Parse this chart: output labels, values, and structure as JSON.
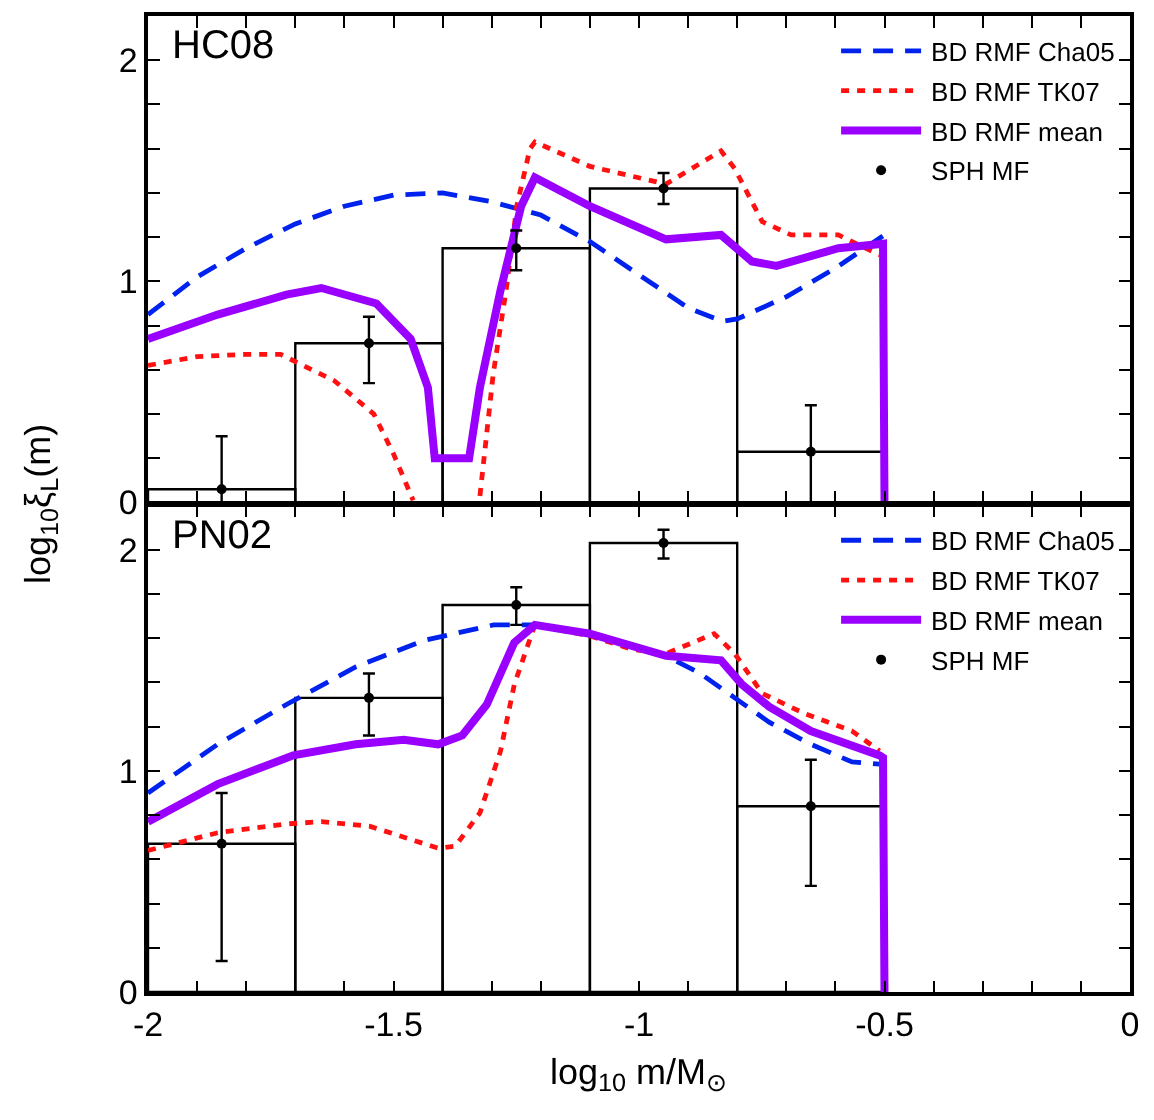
{
  "chart_data": [
    {
      "type": "line",
      "title": "HC08",
      "ylabel": "log$_{10}$ξ$_{L}$(m)",
      "xlim": [
        -2,
        0
      ],
      "ylim": [
        0,
        2.2
      ],
      "xticks": [
        -2,
        {
          "value": -1.9,
          "label": null
        },
        {
          "value": -1.8,
          "label": null
        },
        {
          "value": -1.7,
          "label": null
        },
        {
          "value": -1.6,
          "label": null
        },
        -1.5,
        {
          "value": -1.4,
          "label": null
        },
        {
          "value": -1.3,
          "label": null
        },
        {
          "value": -1.2,
          "label": null
        },
        {
          "value": -1.1,
          "label": null
        },
        -1,
        {
          "value": -0.9,
          "label": null
        },
        {
          "value": -0.8,
          "label": null
        },
        {
          "value": -0.7,
          "label": null
        },
        {
          "value": -0.6,
          "label": null
        },
        -0.5,
        {
          "value": -0.4,
          "label": null
        },
        {
          "value": -0.3,
          "label": null
        },
        {
          "value": -0.2,
          "label": null
        },
        {
          "value": -0.1,
          "label": null
        },
        0
      ],
      "yticks": [
        0,
        {
          "value": 0.2,
          "label": null
        },
        {
          "value": 0.4,
          "label": null
        },
        {
          "value": 0.6,
          "label": null
        },
        {
          "value": 0.8,
          "label": null
        },
        1,
        {
          "value": 1.2,
          "label": null
        },
        {
          "value": 1.4,
          "label": null
        },
        {
          "value": 1.6,
          "label": null
        },
        {
          "value": 1.8,
          "label": null
        },
        2
      ],
      "tick_labels": "y",
      "legend": "top right",
      "series": [
        {
          "name": "BD RMF Cha05",
          "color": "#0022ee",
          "line_style": "dashed",
          "marker": "none",
          "x": [
            -2,
            -1.9,
            -1.8,
            -1.7,
            -1.6,
            -1.5,
            -1.4,
            -1.3,
            -1.2,
            -1.1,
            -1,
            -0.9,
            -0.83,
            -0.8,
            -0.7,
            -0.6,
            -0.5
          ],
          "values": [
            0.85,
            1.02,
            1.15,
            1.26,
            1.34,
            1.39,
            1.4,
            1.36,
            1.3,
            1.18,
            1.03,
            0.88,
            0.82,
            0.83,
            0.93,
            1.06,
            1.21
          ]
        },
        {
          "name": "BD RMF TK07",
          "color": "#ff1111",
          "line_style": "dotted",
          "marker": "none",
          "x": [
            -2,
            -1.9,
            -1.8,
            -1.73,
            -1.62,
            -1.54,
            -1.5,
            -1.46,
            -1.4,
            -1.324,
            -1.297,
            -1.27,
            -1.249,
            -1.222,
            -1.212,
            -1.1,
            -0.945,
            -0.833,
            -0.805,
            -0.749,
            -0.69,
            -0.594,
            -0.51
          ],
          "values": [
            0.62,
            0.66,
            0.67,
            0.67,
            0.55,
            0.4,
            0.22,
            0.01,
            null,
            0.03,
            0.58,
            0.97,
            1.34,
            1.6,
            1.63,
            1.52,
            1.44,
            1.59,
            1.51,
            1.27,
            1.21,
            1.21,
            1.12
          ]
        },
        {
          "name": "BD RMF mean",
          "color": "#9900ff",
          "line_style": "solid",
          "marker": "none",
          "x": [
            -2,
            -1.858,
            -1.718,
            -1.647,
            -1.535,
            -1.465,
            -1.43,
            -1.416,
            -1.346,
            -1.324,
            -1.282,
            -1.24,
            -1.212,
            -1.1,
            -0.945,
            -0.833,
            -0.77,
            -0.72,
            -0.594,
            -0.503,
            -0.5
          ],
          "values": [
            0.74,
            0.85,
            0.94,
            0.97,
            0.9,
            0.74,
            0.52,
            0.2,
            0.2,
            0.52,
            0.96,
            1.34,
            1.47,
            1.34,
            1.19,
            1.21,
            1.09,
            1.07,
            1.15,
            1.17,
            0
          ]
        },
        {
          "type": "histogram",
          "color": "#000000",
          "bins": [
            -2,
            -1.7,
            -1.4,
            -1.1,
            -0.8,
            -0.5
          ],
          "values": [
            0.06,
            0.72,
            1.15,
            1.42,
            0.23
          ]
        },
        {
          "type": "scatter",
          "name": "SPH MF",
          "color": "#000000",
          "marker": "circle",
          "x": [
            -1.85,
            -1.55,
            -1.25,
            -0.95,
            -0.65
          ],
          "values": [
            0.06,
            0.72,
            1.15,
            1.42,
            0.23
          ],
          "errors": [
            [
              0,
              0.3
            ],
            [
              0.54,
              0.84
            ],
            [
              1.05,
              1.23
            ],
            [
              1.35,
              1.49
            ],
            [
              0,
              0.44
            ]
          ]
        }
      ]
    },
    {
      "type": "line",
      "title": "PN02",
      "xlabel": "log$_{10}$ m/M$_{⊙}$",
      "xlim": [
        -2,
        0
      ],
      "ylim": [
        0,
        2.2
      ],
      "xticks": [
        -2,
        {
          "value": -1.9,
          "label": null
        },
        {
          "value": -1.8,
          "label": null
        },
        {
          "value": -1.7,
          "label": null
        },
        {
          "value": -1.6,
          "label": null
        },
        -1.5,
        {
          "value": -1.4,
          "label": null
        },
        {
          "value": -1.3,
          "label": null
        },
        {
          "value": -1.2,
          "label": null
        },
        {
          "value": -1.1,
          "label": null
        },
        -1,
        {
          "value": -0.9,
          "label": null
        },
        {
          "value": -0.8,
          "label": null
        },
        {
          "value": -0.7,
          "label": null
        },
        {
          "value": -0.6,
          "label": null
        },
        -0.5,
        {
          "value": -0.4,
          "label": null
        },
        {
          "value": -0.3,
          "label": null
        },
        {
          "value": -0.2,
          "label": null
        },
        {
          "value": -0.1,
          "label": null
        },
        0
      ],
      "yticks": [
        0,
        {
          "value": 0.2,
          "label": null
        },
        {
          "value": 0.4,
          "label": null
        },
        {
          "value": 0.6,
          "label": null
        },
        {
          "value": 0.8,
          "label": null
        },
        1,
        {
          "value": 1.2,
          "label": null
        },
        {
          "value": 1.4,
          "label": null
        },
        {
          "value": 1.6,
          "label": null
        },
        {
          "value": 1.8,
          "label": null
        },
        2
      ],
      "legend": "top right",
      "series": [
        {
          "name": "BD RMF Cha05",
          "color": "#0022ee",
          "line_style": "dashed",
          "marker": "none",
          "x": [
            -2,
            -1.858,
            -1.718,
            -1.577,
            -1.437,
            -1.296,
            -1.212,
            -1.1,
            -0.945,
            -0.875,
            -0.805,
            -0.735,
            -0.65,
            -0.566,
            -0.51
          ],
          "values": [
            0.9,
            1.12,
            1.3,
            1.47,
            1.59,
            1.66,
            1.66,
            1.62,
            1.52,
            1.44,
            1.33,
            1.22,
            1.12,
            1.04,
            1.03
          ]
        },
        {
          "name": "BD RMF TK07",
          "color": "#ff1111",
          "line_style": "dotted",
          "marker": "none",
          "x": [
            -2,
            -1.858,
            -1.718,
            -1.647,
            -1.549,
            -1.465,
            -1.409,
            -1.374,
            -1.324,
            -1.282,
            -1.254,
            -1.212,
            -1.1,
            -1.015,
            -0.945,
            -0.847,
            -0.805,
            -0.749,
            -0.664,
            -0.566,
            -0.51
          ],
          "values": [
            0.64,
            0.72,
            0.76,
            0.77,
            0.75,
            0.69,
            0.65,
            0.66,
            0.81,
            1.09,
            1.39,
            1.66,
            1.61,
            1.55,
            1.53,
            1.62,
            1.53,
            1.35,
            1.26,
            1.18,
            1.09
          ]
        },
        {
          "name": "BD RMF mean",
          "color": "#9900ff",
          "line_style": "solid",
          "marker": "none",
          "x": [
            -2,
            -1.858,
            -1.704,
            -1.577,
            -1.479,
            -1.409,
            -1.36,
            -1.31,
            -1.254,
            -1.212,
            -1.1,
            -0.945,
            -0.833,
            -0.79,
            -0.735,
            -0.65,
            -0.51,
            -0.503,
            -0.5
          ],
          "values": [
            0.77,
            0.94,
            1.07,
            1.12,
            1.14,
            1.12,
            1.16,
            1.3,
            1.58,
            1.66,
            1.62,
            1.52,
            1.5,
            1.39,
            1.29,
            1.18,
            1.07,
            1.06,
            0
          ]
        },
        {
          "type": "histogram",
          "color": "#000000",
          "bins": [
            -2,
            -1.7,
            -1.4,
            -1.1,
            -0.8,
            -0.5
          ],
          "values": [
            0.67,
            1.33,
            1.75,
            2.03,
            0.84
          ]
        },
        {
          "type": "scatter",
          "name": "SPH MF",
          "color": "#000000",
          "marker": "circle",
          "x": [
            -1.85,
            -1.55,
            -1.25,
            -0.95,
            -0.65
          ],
          "values": [
            0.67,
            1.33,
            1.75,
            2.03,
            0.84
          ],
          "errors": [
            [
              0.14,
              0.9
            ],
            [
              1.16,
              1.44
            ],
            [
              1.66,
              1.83
            ],
            [
              1.96,
              2.09
            ],
            [
              0.48,
              1.05
            ]
          ]
        }
      ]
    }
  ]
}
